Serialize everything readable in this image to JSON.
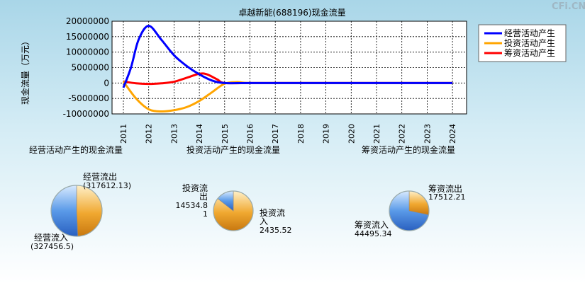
{
  "watermark": "CFi.CN",
  "chart_data": [
    {
      "type": "line",
      "title": "卓越新能(688196)现金流量",
      "ylabel": "现金流量（万元）",
      "x": [
        "2011",
        "2012",
        "2013",
        "2014",
        "2015",
        "2016",
        "2017",
        "2018",
        "2019",
        "2020",
        "2021",
        "2022",
        "2023",
        "2024"
      ],
      "ylim": [
        -10000000,
        20000000
      ],
      "yticks": [
        20000000,
        15000000,
        10000000,
        5000000,
        0,
        -5000000,
        -10000000
      ],
      "ytick_labels": [
        "20000000",
        "15000000",
        "10000000",
        "5000000",
        "0",
        "-5000000",
        "-10000000"
      ],
      "grid": true,
      "legend_position": "top-right",
      "series": [
        {
          "name": "经营活动产生",
          "color": "#0000ff",
          "x": [
            2011,
            2011.3,
            2011.6,
            2012,
            2012.5,
            2013,
            2013.5,
            2014,
            2014.5,
            2015,
            2016,
            2018,
            2020,
            2022,
            2024
          ],
          "values": [
            -1500000,
            5000000,
            14000000,
            18500000,
            14000000,
            9000000,
            5500000,
            2800000,
            800000,
            0,
            0,
            0,
            0,
            0,
            0
          ]
        },
        {
          "name": "投资活动产生",
          "color": "#ffa500",
          "x": [
            2011,
            2011.5,
            2012,
            2012.5,
            2013,
            2013.5,
            2014,
            2014.5,
            2015,
            2015.5,
            2016,
            2018,
            2020,
            2022,
            2024
          ],
          "values": [
            500000,
            -5000000,
            -8500000,
            -9200000,
            -8800000,
            -7800000,
            -5800000,
            -3000000,
            -200000,
            300000,
            0,
            0,
            0,
            0,
            0
          ]
        },
        {
          "name": "筹资活动产生",
          "color": "#ff0000",
          "x": [
            2011,
            2011.5,
            2012,
            2012.5,
            2013,
            2013.5,
            2014,
            2014.3,
            2014.7,
            2015,
            2016,
            2018,
            2020,
            2022,
            2024
          ],
          "values": [
            500000,
            -100000,
            -300000,
            -100000,
            400000,
            1700000,
            3000000,
            2800000,
            1200000,
            0,
            0,
            0,
            0,
            0,
            0
          ]
        }
      ]
    },
    {
      "type": "pie",
      "title": "经营活动产生的现金流量",
      "slices": [
        {
          "label": "经营流出",
          "value_label": "(317612.13)",
          "value": 317612.13,
          "color": "#f0a830"
        },
        {
          "label": "经营流入",
          "value_label": "(327456.5)",
          "value": 327456.5,
          "color": "#5a9ae8"
        }
      ]
    },
    {
      "type": "pie",
      "title": "投资活动产生的现金流量",
      "slices": [
        {
          "label": "投资流出",
          "value_label": "14534.81",
          "value": 14534.81,
          "color": "#f0a830"
        },
        {
          "label": "投资流入",
          "value_label": "2435.52",
          "value": 2435.52,
          "color": "#5a9ae8"
        }
      ]
    },
    {
      "type": "pie",
      "title": "筹资活动产生的现金流量",
      "slices": [
        {
          "label": "筹资流出",
          "value_label": "17512.21",
          "value": 17512.21,
          "color": "#f0a830"
        },
        {
          "label": "筹资流入",
          "value_label": "44495.34",
          "value": 44495.34,
          "color": "#5a9ae8"
        }
      ]
    }
  ]
}
